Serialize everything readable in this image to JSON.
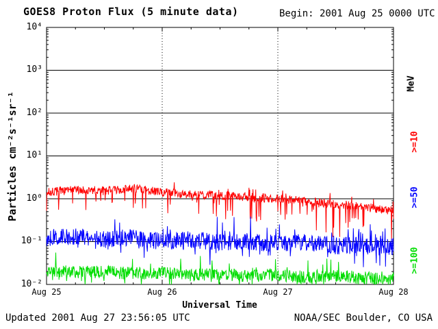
{
  "header": {
    "title": "GOES8 Proton Flux (5 minute data)",
    "begin_label": "Begin: 2001 Aug 25 0000 UTC"
  },
  "footer": {
    "updated": "Updated 2001 Aug 27 23:56:05 UTC",
    "credit": "NOAA/SEC Boulder, CO USA"
  },
  "colors": {
    "axis": "#000000",
    "background": "#ffffff"
  },
  "chart_data": {
    "type": "line",
    "title": "GOES8 Proton Flux (5 minute data)",
    "xlabel": "Universal Time",
    "ylabel": "Particles cm⁻²s⁻¹sr⁻¹",
    "right_axis_label": "MeV",
    "x_ticks": [
      "Aug 25",
      "Aug 26",
      "Aug 27",
      "Aug 28"
    ],
    "y_ticks": [
      "10⁴",
      "10³",
      "10²",
      "10¹",
      "10⁰",
      "10⁻¹",
      "10⁻²"
    ],
    "ylim_log10": [
      -2,
      4
    ],
    "duration_hours": 72,
    "sample_minutes": 5,
    "grid": {
      "horizontal_decades": "solid",
      "vertical_days": "dotted"
    },
    "legend_position": "right-rotated",
    "series": [
      {
        "name": ">=10",
        "color": "#ff0000",
        "baseline_log10": [
          0.15,
          0.22,
          0.18,
          0.24,
          0.15,
          0.1,
          0.08,
          0.04,
          0.0,
          -0.06,
          -0.12,
          -0.2,
          -0.28
        ],
        "jitter": 0.1,
        "spike_down_prob": 0.08,
        "spike_down_max": 0.85,
        "spike_up_prob": 0.05,
        "spike_up_max": 0.22,
        "seed": 7
      },
      {
        "name": ">=50",
        "color": "#0000ff",
        "baseline_log10": [
          -0.92,
          -0.88,
          -0.95,
          -0.9,
          -1.0,
          -0.95,
          -1.02,
          -1.0,
          -1.05,
          -1.02,
          -1.1,
          -1.08,
          -1.12
        ],
        "jitter": 0.2,
        "spike_down_prob": 0.06,
        "spike_down_max": 0.55,
        "spike_up_prob": 0.06,
        "spike_up_max": 0.45,
        "seed": 13
      },
      {
        "name": ">=100",
        "color": "#00dd00",
        "baseline_log10": [
          -1.68,
          -1.72,
          -1.7,
          -1.75,
          -1.72,
          -1.78,
          -1.75,
          -1.8,
          -1.78,
          -1.83,
          -1.8,
          -1.85,
          -1.83
        ],
        "jitter": 0.15,
        "spike_down_prob": 0.08,
        "spike_down_max": 0.4,
        "spike_up_prob": 0.04,
        "spike_up_max": 0.42,
        "seed": 99
      }
    ]
  }
}
